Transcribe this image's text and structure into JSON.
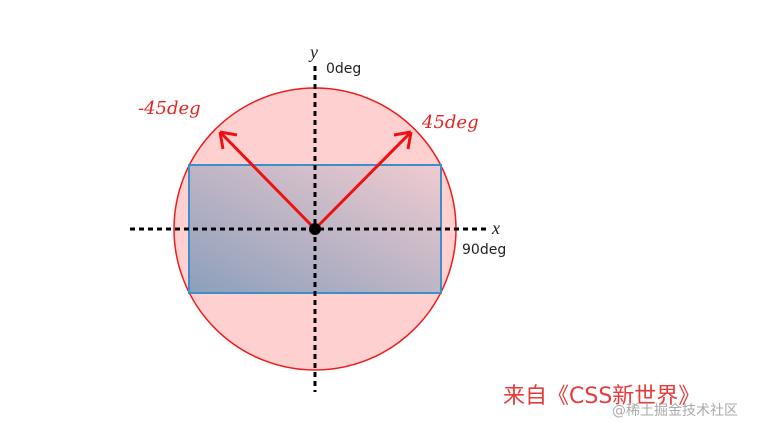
{
  "labels": {
    "y_axis": "y",
    "x_axis": "x",
    "deg_0": "0deg",
    "deg_90": "90deg",
    "deg_neg45": "-45deg",
    "deg_45": "45deg"
  },
  "credit": "来自《CSS新世界》",
  "watermark": "@稀土掘金技术社区",
  "colors": {
    "circle_fill": "#ffd0d0",
    "circle_stroke": "#ee1c1c",
    "rect_stroke": "#3c8fc8",
    "arrow": "#ee1111",
    "gradient_start": "#8c9fbb",
    "gradient_end": "#f0cbd0"
  }
}
